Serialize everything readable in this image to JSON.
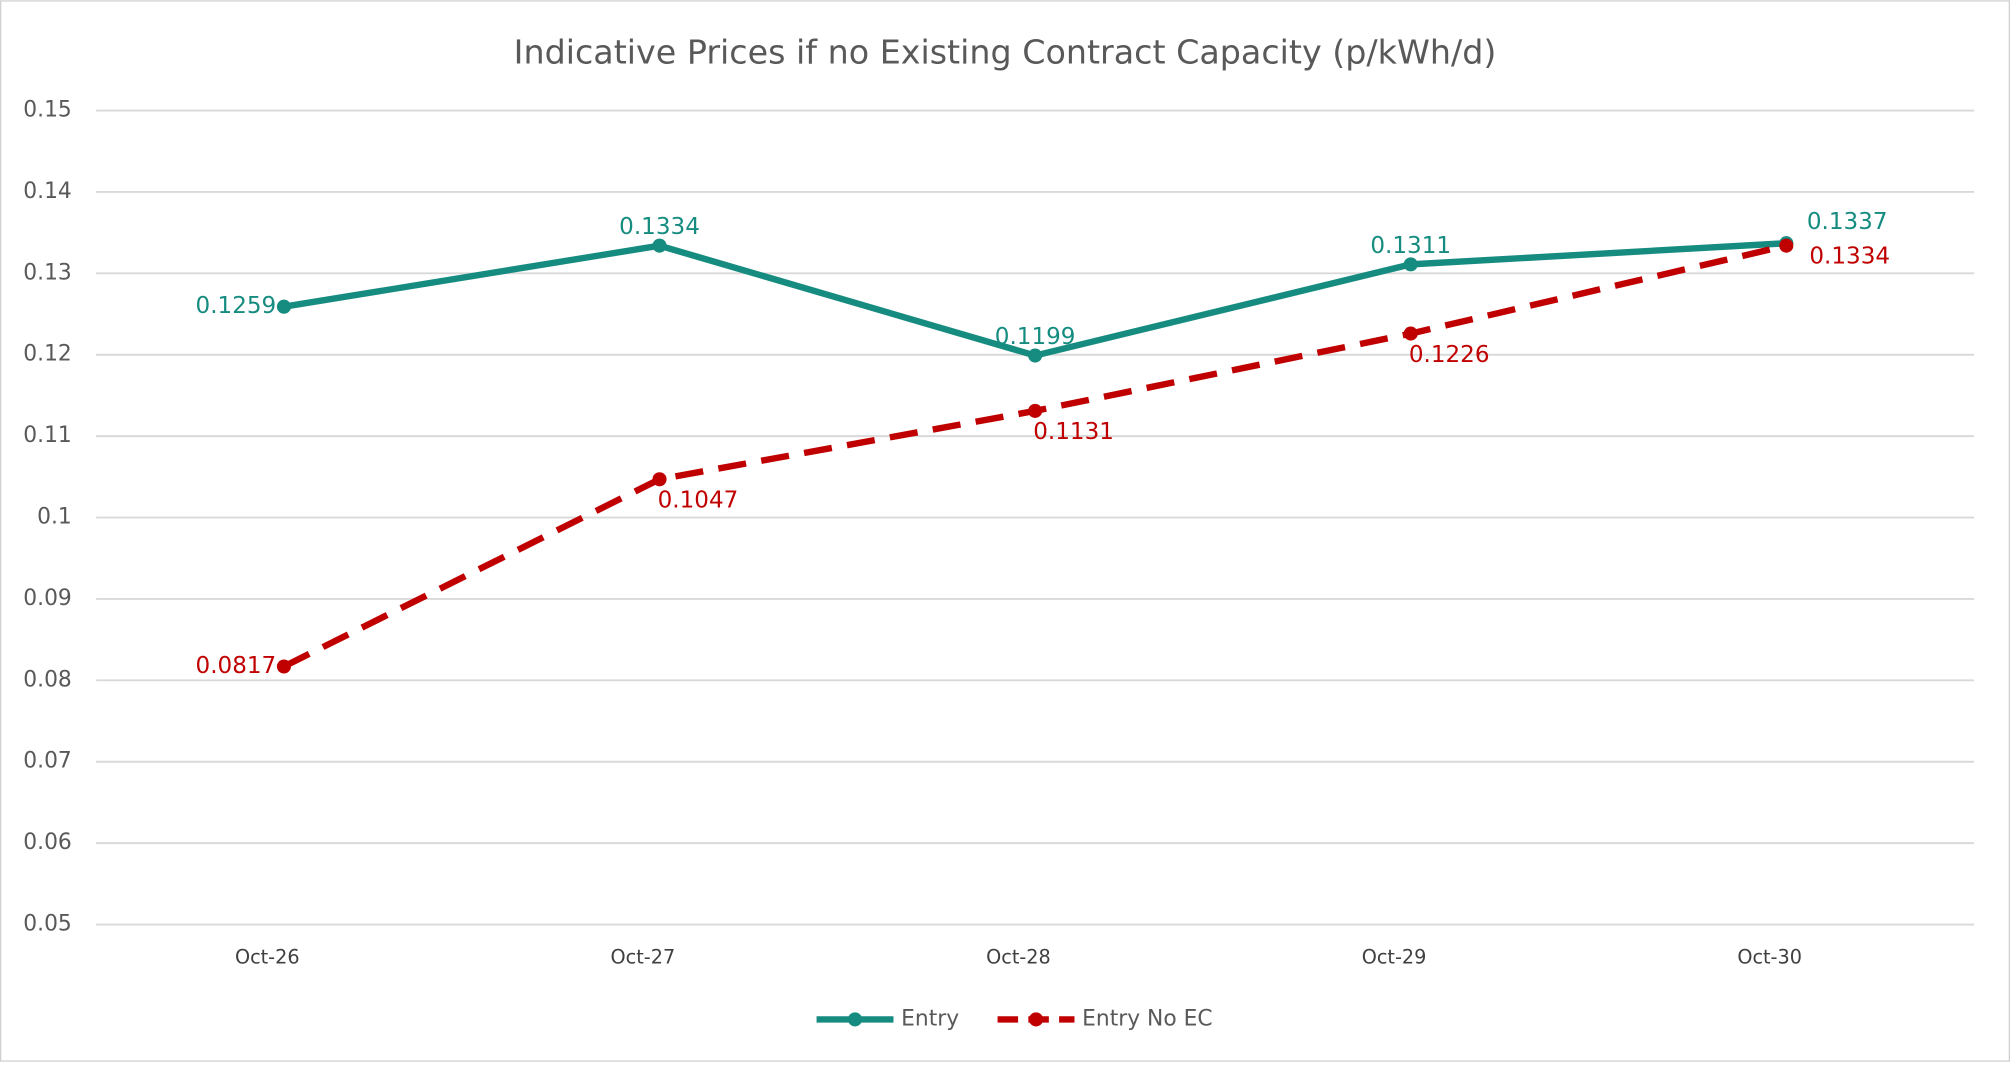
{
  "chart_data": {
    "type": "line",
    "title": "Indicative Prices if no Existing Contract Capacity (p/kWh/d)",
    "categories": [
      "Oct-26",
      "Oct-27",
      "Oct-28",
      "Oct-29",
      "Oct-30"
    ],
    "series": [
      {
        "name": "Entry",
        "color": "#168c80",
        "dashed": false,
        "values": [
          0.1259,
          0.1334,
          0.1199,
          0.1311,
          0.1337
        ]
      },
      {
        "name": "Entry No EC",
        "color": "#c00000",
        "dashed": true,
        "values": [
          0.0817,
          0.1047,
          0.1131,
          0.1226,
          0.1334
        ]
      }
    ],
    "ylim": [
      0.05,
      0.15
    ],
    "yticks": [
      0.15,
      0.14,
      0.13,
      0.12,
      0.11,
      0.1,
      0.09,
      0.08,
      0.07,
      0.06,
      0.05
    ],
    "grid": true,
    "legend": "bottom"
  }
}
